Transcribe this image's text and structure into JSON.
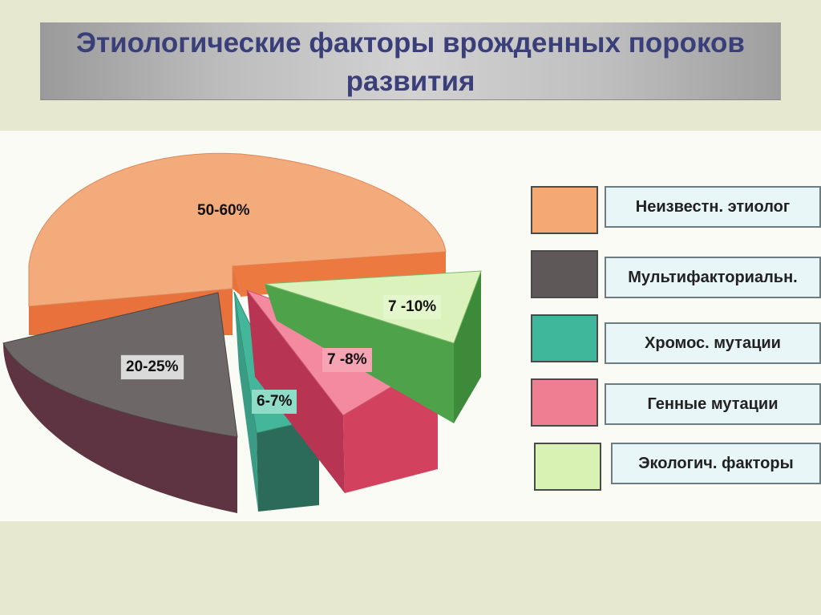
{
  "title": "Этиологические факторы врожденных пороков развития",
  "chart_data": {
    "type": "pie",
    "title": "Этиологические факторы врожденных пороков развития",
    "legend_position": "right",
    "slices": [
      {
        "name": "Неизвестн. этиолог",
        "label": "50-60%",
        "value_range": [
          50,
          60
        ],
        "color": "#f4a874"
      },
      {
        "name": "Мультифакториальн.",
        "label": "20-25%",
        "value_range": [
          20,
          25
        ],
        "color": "#6b6566"
      },
      {
        "name": "Хромос. мутации",
        "label": "6-7%",
        "value_range": [
          6,
          7
        ],
        "color": "#3fb79a"
      },
      {
        "name": "Генные мутации",
        "label": "7 -8%",
        "value_range": [
          7,
          8
        ],
        "color": "#ef7e93"
      },
      {
        "name": "Экологич. факторы",
        "label": "7 -10%",
        "value_range": [
          7,
          10
        ],
        "color": "#d8f2b4"
      }
    ]
  }
}
